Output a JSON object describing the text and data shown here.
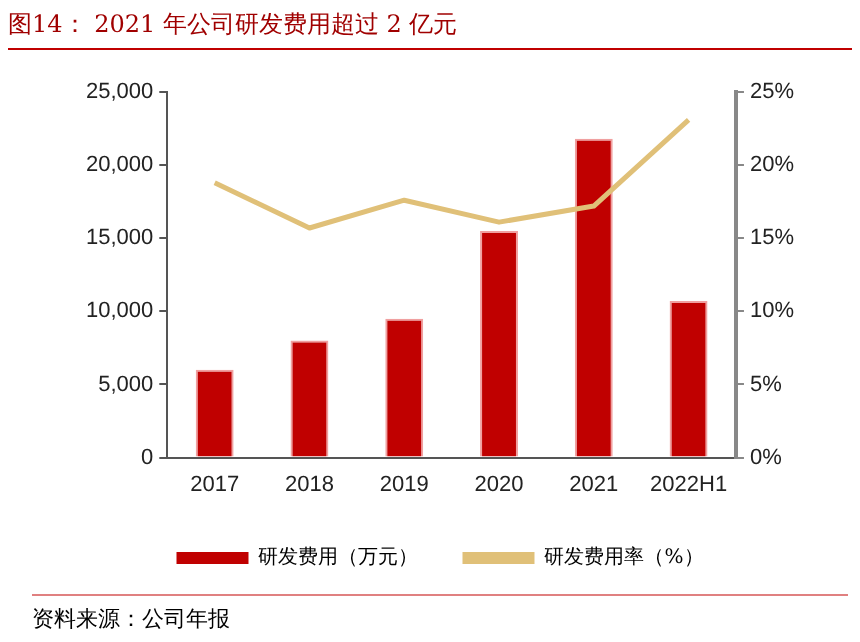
{
  "chart_data": {
    "type": "bar",
    "title": "图14：  2021 年公司研发费用超过 2 亿元",
    "annotations": [
      "资料来源：公司年报"
    ],
    "categories": [
      "2017",
      "2018",
      "2019",
      "2020",
      "2021",
      "2022H1"
    ],
    "series": [
      {
        "name": "研发费用（万元）",
        "color": "#c00000",
        "values": [
          6000,
          8000,
          9500,
          15500,
          21800,
          10700
        ]
      },
      {
        "name": "研发费用率（%）",
        "type": "line",
        "axis": "y2",
        "color": "#e0c078",
        "values": [
          18.8,
          15.7,
          17.6,
          16.1,
          17.2,
          23.1
        ]
      }
    ],
    "ylim": [
      0,
      25000
    ],
    "yticks": [
      {
        "value": 0,
        "label": "0"
      },
      {
        "value": 5000,
        "label": "5,000"
      },
      {
        "value": 10000,
        "label": "10,000"
      },
      {
        "value": 15000,
        "label": "15,000"
      },
      {
        "value": 20000,
        "label": "20,000"
      },
      {
        "value": 25000,
        "label": "25,000"
      }
    ],
    "y2lim": [
      0,
      25
    ],
    "y2ticks": [
      {
        "value": 0,
        "label": "0%"
      },
      {
        "value": 5,
        "label": "5%"
      },
      {
        "value": 10,
        "label": "10%"
      },
      {
        "value": 15,
        "label": "15%"
      },
      {
        "value": 20,
        "label": "20%"
      },
      {
        "value": 25,
        "label": "25%"
      }
    ],
    "grid": false,
    "legend": "bottom",
    "marker": "none"
  }
}
